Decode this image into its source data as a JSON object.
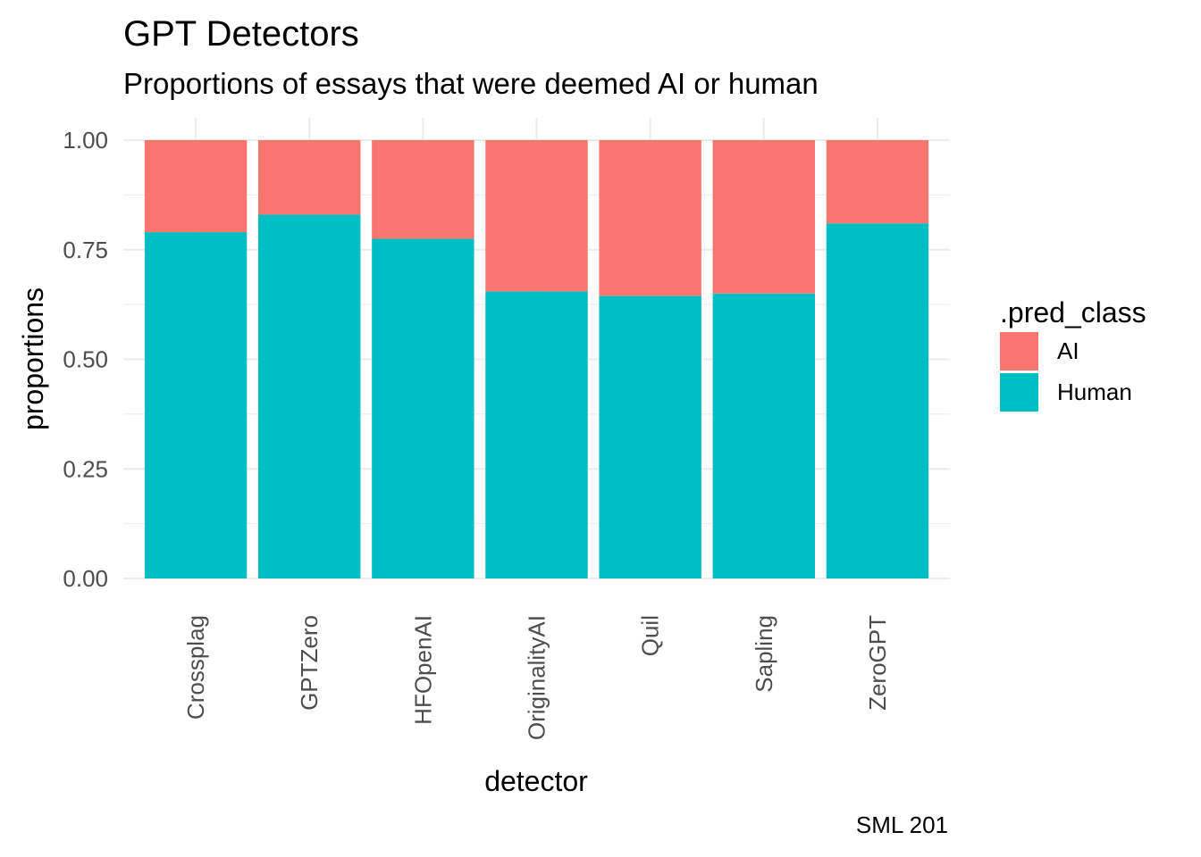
{
  "chart_data": {
    "type": "bar",
    "stacked": true,
    "title": "GPT Detectors",
    "subtitle": "Proportions of essays that were deemed AI or human",
    "caption": "SML 201",
    "xlabel": "detector",
    "ylabel": "proportions",
    "ylim": [
      0,
      1
    ],
    "yticks": [
      "0.00",
      "0.25",
      "0.50",
      "0.75",
      "1.00"
    ],
    "categories": [
      "Crossplag",
      "GPTZero",
      "HFOpenAI",
      "OriginalityAI",
      "Quil",
      "Sapling",
      "ZeroGPT"
    ],
    "series": [
      {
        "name": "AI",
        "color": "#F8766D",
        "values": [
          0.21,
          0.17,
          0.225,
          0.345,
          0.355,
          0.35,
          0.19
        ]
      },
      {
        "name": "Human",
        "color": "#00BFC4",
        "values": [
          0.79,
          0.83,
          0.775,
          0.655,
          0.645,
          0.65,
          0.81
        ]
      }
    ],
    "legend": {
      "title": ".pred_class",
      "position": "right"
    },
    "grid": true
  }
}
